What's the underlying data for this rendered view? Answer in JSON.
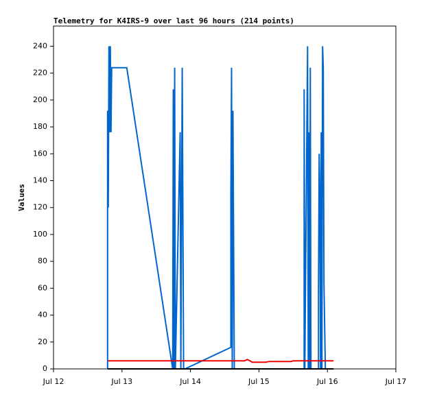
{
  "chart_data": {
    "type": "line",
    "title": "Telemetry for K4IRS-9 over last 96 hours (214 points)",
    "y_label": "Values",
    "xlim": [
      0,
      5
    ],
    "xticks": [
      {
        "value": 0,
        "label": "Jul 12"
      },
      {
        "value": 1,
        "label": "Jul 13"
      },
      {
        "value": 2,
        "label": "Jul 14"
      },
      {
        "value": 3,
        "label": "Jul 15"
      },
      {
        "value": 4,
        "label": "Jul 16"
      },
      {
        "value": 5,
        "label": "Jul 17"
      }
    ],
    "ylim": [
      0,
      255
    ],
    "yticks": [
      0,
      20,
      40,
      60,
      80,
      100,
      120,
      140,
      160,
      180,
      200,
      220,
      240
    ],
    "series": [
      {
        "color": "#0066cc",
        "x": [
          0.79,
          0.79,
          0.8,
          0.81,
          0.82,
          0.83,
          0.84,
          0.85,
          1.07,
          1.74,
          1.75,
          1.76,
          1.77,
          1.78,
          1.85,
          1.86,
          1.88,
          1.89,
          1.9,
          1.92,
          2.59,
          2.59,
          2.6,
          2.61,
          2.62,
          2.63,
          2.64,
          3.66,
          3.66,
          3.67,
          3.71,
          3.72,
          3.73,
          3.74,
          3.75,
          3.76,
          3.87,
          3.87,
          3.88,
          3.89,
          3.9,
          3.91,
          3.92,
          3.93,
          3.94,
          3.95,
          3.96,
          3.97
        ],
        "values": [
          0,
          192,
          120,
          240,
          176,
          240,
          176,
          224,
          224,
          0,
          208,
          0,
          224,
          0,
          176,
          0,
          224,
          112,
          0,
          0,
          16,
          128,
          224,
          0,
          192,
          96,
          0,
          0,
          208,
          0,
          240,
          0,
          176,
          0,
          224,
          0,
          0,
          56,
          160,
          128,
          0,
          176,
          0,
          240,
          224,
          64,
          32,
          0
        ]
      },
      {
        "color": "#000000",
        "x": [
          0.79,
          4.09
        ],
        "values": [
          0,
          0
        ]
      },
      {
        "color": "#ee0000",
        "x": [
          0.79,
          2.79,
          2.83,
          2.87,
          2.9,
          3.1,
          3.15,
          3.47,
          3.5,
          4.09
        ],
        "values": [
          6,
          6,
          7,
          6,
          5,
          5,
          5.5,
          5.5,
          6,
          6
        ]
      }
    ]
  }
}
